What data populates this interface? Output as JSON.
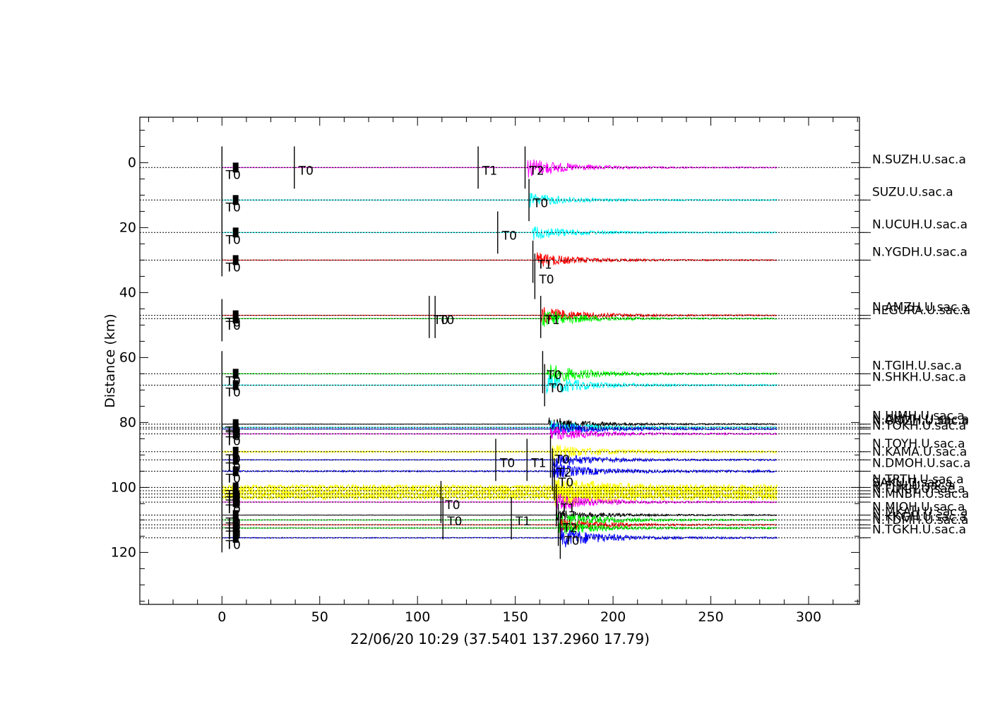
{
  "chart_data": {
    "type": "seismic-record-section",
    "xlabel": "",
    "ylabel": "Distance (km)",
    "caption": "22/06/20 10:29 (37.5401 137.2960 17.79)",
    "xlim": [
      -42,
      326
    ],
    "ylim": [
      136,
      -14
    ],
    "xticks": [
      0,
      50,
      100,
      150,
      200,
      250,
      300
    ],
    "yticks": [
      0,
      20,
      40,
      60,
      80,
      100,
      120
    ],
    "trace_x_range": [
      0,
      284
    ],
    "grid": false,
    "colors": {
      "magenta": "#ff00ff",
      "cyan": "#00ffff",
      "red": "#ff0000",
      "green": "#00ff00",
      "blue": "#0000ff",
      "yellow": "#ffff00",
      "black": "#000000"
    },
    "traces": [
      {
        "label": "N.SUZH.U.sac.a",
        "dist": 1.5,
        "color": "magenta",
        "arrival": 156,
        "amp": 7,
        "noise": 0.3
      },
      {
        "label": "SUZU.U.sac.a",
        "dist": 11.5,
        "color": "cyan",
        "arrival": 157,
        "amp": 5,
        "noise": 0.3
      },
      {
        "label": "N.UCUH.U.sac.a",
        "dist": 21.5,
        "color": "cyan",
        "arrival": 159,
        "amp": 5,
        "noise": 0.3
      },
      {
        "label": "N.YGDH.U.sac.a",
        "dist": 30.0,
        "color": "red",
        "arrival": 161,
        "amp": 5,
        "noise": 0.3
      },
      {
        "label": "N.AMZH.U.sac.a",
        "dist": 47.0,
        "color": "red",
        "arrival": 163,
        "amp": 6,
        "noise": 0.3
      },
      {
        "label": "HEGURA.U.sac.a",
        "dist": 48.0,
        "color": "green",
        "arrival": 164,
        "amp": 6,
        "noise": 0.3
      },
      {
        "label": "N.TGIH.U.sac.a",
        "dist": 65.0,
        "color": "green",
        "arrival": 166,
        "amp": 7,
        "noise": 0.5
      },
      {
        "label": "N.SHKH.U.sac.a",
        "dist": 68.5,
        "color": "cyan",
        "arrival": 166,
        "amp": 7,
        "noise": 0.4
      },
      {
        "label": "N.HIMH.U.sac.a",
        "dist": 80.5,
        "color": "black",
        "arrival": 167,
        "amp": 5,
        "noise": 0.3
      },
      {
        "label": "N.ANMH.U.sac.a",
        "dist": 81.5,
        "color": "cyan",
        "arrival": 168,
        "amp": 5,
        "noise": 0.4
      },
      {
        "label": "N.OOZH.U.sac.a",
        "dist": 82.0,
        "color": "blue",
        "arrival": 168,
        "amp": 5,
        "noise": 0.4
      },
      {
        "label": "N.TOKH.U.sac.a",
        "dist": 83.5,
        "color": "magenta",
        "arrival": 168,
        "amp": 5,
        "noise": 0.5
      },
      {
        "label": "N.TOYH.U.sac.a",
        "dist": 89.0,
        "color": "yellow",
        "arrival": 169,
        "amp": 5,
        "noise": 1.0
      },
      {
        "label": "N.KAMA.U.sac.a",
        "dist": 91.5,
        "color": "blue",
        "arrival": 169,
        "amp": 5,
        "noise": 0.5
      },
      {
        "label": "N.DMOH.U.sac.a",
        "dist": 95.0,
        "color": "blue",
        "arrival": 169,
        "amp": 5,
        "noise": 1.0
      },
      {
        "label": "N.TRTH.U.sac.a",
        "dist": 100.0,
        "color": "yellow",
        "arrival": 170,
        "amp": 6,
        "noise": 4.0
      },
      {
        "label": "SAKU.U.sac.a",
        "dist": 101.0,
        "color": "yellow",
        "arrival": 170,
        "amp": 6,
        "noise": 3.5
      },
      {
        "label": "N.FJIH.U.sac.a",
        "dist": 102.0,
        "color": "yellow",
        "arrival": 170,
        "amp": 6,
        "noise": 3.5
      },
      {
        "label": "N.FUKH.U.sac.a",
        "dist": 103.0,
        "color": "yellow",
        "arrival": 170,
        "amp": 6,
        "noise": 3.5
      },
      {
        "label": "N.MNBH.U.sac.a",
        "dist": 104.5,
        "color": "magenta",
        "arrival": 171,
        "amp": 6,
        "noise": 0.4
      },
      {
        "label": "N.MIOH.U.sac.a",
        "dist": 108.5,
        "color": "black",
        "arrival": 171,
        "amp": 4,
        "noise": 0.2
      },
      {
        "label": "N.MKAH.U.sac.a",
        "dist": 110.0,
        "color": "green",
        "arrival": 171,
        "amp": 6,
        "noise": 0.4
      },
      {
        "label": "N.KKGH.U.sac.a",
        "dist": 111.5,
        "color": "red",
        "arrival": 172,
        "amp": 5,
        "noise": 0.3
      },
      {
        "label": "N.TDMH.U.sac.a",
        "dist": 112.5,
        "color": "green",
        "arrival": 172,
        "amp": 5,
        "noise": 0.5
      },
      {
        "label": "N.TGKH.U.sac.a",
        "dist": 115.5,
        "color": "blue",
        "arrival": 173,
        "amp": 7,
        "noise": 0.6
      }
    ],
    "picks": [
      {
        "x": 0,
        "y1": -5,
        "y2": 35,
        "label": ""
      },
      {
        "x": 0,
        "y1": 42,
        "y2": 55,
        "label": ""
      },
      {
        "x": 0,
        "y1": 58,
        "y2": 120,
        "label": ""
      },
      {
        "x": 37,
        "y1": -5,
        "y2": 8,
        "label": "T0"
      },
      {
        "x": 131,
        "y1": -5,
        "y2": 8,
        "label": "T1"
      },
      {
        "x": 155,
        "y1": -5,
        "y2": 8,
        "label": "T2"
      },
      {
        "x": 157,
        "y1": 5,
        "y2": 18,
        "label": "T0"
      },
      {
        "x": 141,
        "y1": 15,
        "y2": 28,
        "label": "T0"
      },
      {
        "x": 159,
        "y1": 24,
        "y2": 37,
        "label": "T1"
      },
      {
        "x": 160,
        "y1": 28,
        "y2": 42,
        "label": "T0"
      },
      {
        "x": 106,
        "y1": 41,
        "y2": 54,
        "label": "T0"
      },
      {
        "x": 109,
        "y1": 41,
        "y2": 54,
        "label": "T0"
      },
      {
        "x": 163,
        "y1": 41,
        "y2": 54,
        "label": "T1"
      },
      {
        "x": 164,
        "y1": 58,
        "y2": 71,
        "label": "T0"
      },
      {
        "x": 165,
        "y1": 62,
        "y2": 75,
        "label": "T0"
      },
      {
        "x": 140,
        "y1": 85,
        "y2": 98,
        "label": "T0"
      },
      {
        "x": 156,
        "y1": 85,
        "y2": 98,
        "label": "T1"
      },
      {
        "x": 168,
        "y1": 84,
        "y2": 97,
        "label": "T0"
      },
      {
        "x": 169,
        "y1": 88,
        "y2": 101,
        "label": "T2"
      },
      {
        "x": 170,
        "y1": 91,
        "y2": 104,
        "label": "T0"
      },
      {
        "x": 112,
        "y1": 98,
        "y2": 111,
        "label": "T0"
      },
      {
        "x": 113,
        "y1": 103,
        "y2": 116,
        "label": "T0"
      },
      {
        "x": 148,
        "y1": 103,
        "y2": 116,
        "label": "T1"
      },
      {
        "x": 171,
        "y1": 99,
        "y2": 112,
        "label": "T1"
      },
      {
        "x": 172,
        "y1": 105,
        "y2": 118,
        "label": "T2"
      },
      {
        "x": 173,
        "y1": 109,
        "y2": 122,
        "label": "T0"
      }
    ],
    "origin_marker_x": 7
  }
}
